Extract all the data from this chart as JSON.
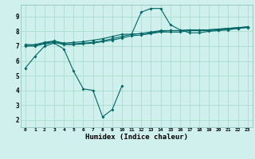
{
  "xlabel": "Humidex (Indice chaleur)",
  "background_color": "#cff0ec",
  "grid_color": "#aaddcc",
  "line_color": "#006666",
  "xlim": [
    -0.5,
    23.5
  ],
  "ylim": [
    1.5,
    9.8
  ],
  "yticks": [
    2,
    3,
    4,
    5,
    6,
    7,
    8,
    9
  ],
  "xticks": [
    0,
    1,
    2,
    3,
    4,
    5,
    6,
    7,
    8,
    9,
    10,
    11,
    12,
    13,
    14,
    15,
    16,
    17,
    18,
    19,
    20,
    21,
    22,
    23
  ],
  "x": [
    0,
    1,
    2,
    3,
    4,
    5,
    6,
    7,
    8,
    9,
    10,
    11,
    12,
    13,
    14,
    15,
    16,
    17,
    18,
    19,
    20,
    21,
    22,
    23
  ],
  "series": [
    [
      5.5,
      6.3,
      7.0,
      7.2,
      6.8,
      5.3,
      4.1,
      4.0,
      2.2,
      2.7,
      4.3,
      null,
      null,
      null,
      null,
      null,
      null,
      null,
      null,
      null,
      null,
      null,
      null,
      null
    ],
    [
      7.0,
      7.0,
      7.15,
      7.25,
      7.1,
      7.1,
      7.15,
      7.2,
      7.3,
      7.4,
      7.55,
      7.7,
      7.75,
      7.85,
      7.95,
      7.95,
      7.95,
      8.05,
      8.05,
      8.05,
      8.1,
      8.15,
      8.2,
      8.25
    ],
    [
      7.05,
      7.05,
      7.2,
      7.3,
      7.15,
      7.15,
      7.2,
      7.25,
      7.35,
      7.5,
      7.65,
      7.8,
      7.85,
      7.95,
      8.05,
      8.05,
      8.05,
      8.1,
      8.1,
      8.1,
      8.15,
      8.2,
      8.25,
      8.3
    ],
    [
      7.1,
      7.1,
      7.25,
      7.35,
      7.2,
      7.25,
      7.3,
      7.4,
      7.5,
      7.65,
      7.8,
      7.8,
      7.85,
      7.9,
      8.0,
      8.05,
      8.05,
      8.1,
      8.1,
      8.1,
      8.15,
      8.2,
      8.25,
      8.3
    ],
    [
      null,
      null,
      null,
      null,
      null,
      null,
      null,
      null,
      null,
      null,
      null,
      7.8,
      9.3,
      9.55,
      9.55,
      8.45,
      8.1,
      7.9,
      7.9,
      8.0,
      8.05,
      8.1,
      8.2,
      8.3
    ]
  ]
}
